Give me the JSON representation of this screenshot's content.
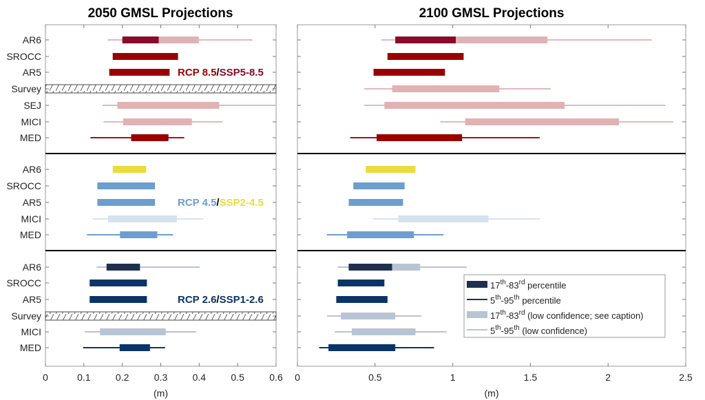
{
  "chart_data": [
    {
      "type": "bar",
      "title": "2050 GMSL Projections",
      "xlabel": "(m)",
      "xlim": [
        0,
        0.6
      ],
      "xticks": [
        "0",
        "0.1",
        "0.2",
        "0.3",
        "0.4",
        "0.5",
        "0.6"
      ],
      "groups": [
        {
          "label_parts": [
            {
              "text": "RCP 8.5",
              "color": "#a10000"
            },
            {
              "text": "/",
              "color": "#000000"
            },
            {
              "text": "SSP5-8.5",
              "color": "#8a0a2a"
            }
          ],
          "rows": [
            {
              "label": "AR6",
              "whisker": [
                0.162,
                0.539
              ],
              "whisker_color": "#e3b8bb",
              "boxes": [
                {
                  "range": [
                    0.2,
                    0.295
                  ],
                  "color": "#8a0a2a"
                },
                {
                  "range": [
                    0.295,
                    0.399
                  ],
                  "color": "#deb3b7"
                }
              ]
            },
            {
              "label": "SROCC",
              "boxes": [
                {
                  "range": [
                    0.175,
                    0.345
                  ],
                  "color": "#9b0000"
                }
              ]
            },
            {
              "label": "AR5",
              "boxes": [
                {
                  "range": [
                    0.166,
                    0.323
                  ],
                  "color": "#9b0000"
                }
              ]
            },
            {
              "label": "Survey",
              "no_data": true
            },
            {
              "label": "SEJ",
              "whisker": [
                0.148,
                0.6
              ],
              "whisker_color": "#e3b8bb",
              "boxes": [
                {
                  "range": [
                    0.187,
                    0.452
                  ],
                  "color": "#e0b2b4"
                }
              ]
            },
            {
              "label": "MICI",
              "whisker": [
                0.151,
                0.461
              ],
              "whisker_color": "#e3b8bb",
              "boxes": [
                {
                  "range": [
                    0.202,
                    0.381
                  ],
                  "color": "#e0b2b4"
                }
              ]
            },
            {
              "label": "MED",
              "whisker": [
                0.117,
                0.361
              ],
              "whisker_color": "#a50f15",
              "boxes": [
                {
                  "range": [
                    0.223,
                    0.32
                  ],
                  "color": "#9b0000"
                }
              ]
            }
          ]
        },
        {
          "label_parts": [
            {
              "text": "RCP 4.5",
              "color": "#6c9ecf"
            },
            {
              "text": "/",
              "color": "#000000"
            },
            {
              "text": "SSP2-4.5",
              "color": "#eadc3a"
            }
          ],
          "rows": [
            {
              "label": "AR6",
              "boxes": [
                {
                  "range": [
                    0.175,
                    0.262
                  ],
                  "color": "#eadc3a"
                }
              ]
            },
            {
              "label": "SROCC",
              "boxes": [
                {
                  "range": [
                    0.135,
                    0.285
                  ],
                  "color": "#6c9ecf"
                }
              ]
            },
            {
              "label": "AR5",
              "boxes": [
                {
                  "range": [
                    0.135,
                    0.285
                  ],
                  "color": "#6c9ecf"
                }
              ]
            },
            {
              "label": "MICI",
              "whisker": [
                0.123,
                0.411
              ],
              "whisker_color": "#d6e3f1",
              "boxes": [
                {
                  "range": [
                    0.163,
                    0.342
                  ],
                  "color": "#d4e2f0"
                }
              ]
            },
            {
              "label": "MED",
              "whisker": [
                0.108,
                0.332
              ],
              "whisker_color": "#6c9ecf",
              "boxes": [
                {
                  "range": [
                    0.194,
                    0.291
                  ],
                  "color": "#6c9ecf"
                }
              ]
            }
          ]
        },
        {
          "label_parts": [
            {
              "text": "RCP 2.6",
              "color": "#0a3468"
            },
            {
              "text": "/",
              "color": "#000000"
            },
            {
              "text": "SSP1-2.6",
              "color": "#0a3468"
            }
          ],
          "rows": [
            {
              "label": "AR6",
              "whisker": [
                0.133,
                0.401
              ],
              "whisker_color": "#b7c4d3",
              "boxes": [
                {
                  "range": [
                    0.159,
                    0.246
                  ],
                  "color": "#1e3050"
                }
              ]
            },
            {
              "label": "SROCC",
              "boxes": [
                {
                  "range": [
                    0.115,
                    0.264
                  ],
                  "color": "#0a3468"
                }
              ]
            },
            {
              "label": "AR5",
              "boxes": [
                {
                  "range": [
                    0.115,
                    0.264
                  ],
                  "color": "#0a3468"
                }
              ]
            },
            {
              "label": "Survey",
              "no_data": true
            },
            {
              "label": "MICI",
              "whisker": [
                0.102,
                0.392
              ],
              "whisker_color": "#b7c4d3",
              "boxes": [
                {
                  "range": [
                    0.142,
                    0.313
                  ],
                  "color": "#b7c4d3"
                }
              ]
            },
            {
              "label": "MED",
              "whisker": [
                0.098,
                0.311
              ],
              "whisker_color": "#0a3468",
              "boxes": [
                {
                  "range": [
                    0.193,
                    0.272
                  ],
                  "color": "#0a3468"
                }
              ]
            }
          ]
        }
      ]
    },
    {
      "type": "bar",
      "title": "2100 GMSL Projections",
      "xlabel": "(m)",
      "xlim": [
        0,
        2.5
      ],
      "xticks": [
        "0",
        "0.5",
        "1",
        "1.5",
        "2",
        "2.5"
      ],
      "groups": [
        {
          "rows": [
            {
              "label": "AR6",
              "whisker": [
                0.54,
                2.28
              ],
              "whisker_color": "#e3b8bb",
              "boxes": [
                {
                  "range": [
                    0.63,
                    1.02
                  ],
                  "color": "#8a0a2a"
                },
                {
                  "range": [
                    1.02,
                    1.61
                  ],
                  "color": "#deb3b7"
                }
              ]
            },
            {
              "label": "SROCC",
              "boxes": [
                {
                  "range": [
                    0.58,
                    1.07
                  ],
                  "color": "#9b0000"
                }
              ]
            },
            {
              "label": "AR5",
              "boxes": [
                {
                  "range": [
                    0.49,
                    0.95
                  ],
                  "color": "#9b0000"
                }
              ]
            },
            {
              "label": "Survey",
              "whisker": [
                0.43,
                1.63
              ],
              "whisker_color": "#e3b8bb",
              "boxes": [
                {
                  "range": [
                    0.61,
                    1.3
                  ],
                  "color": "#e0b2b4"
                }
              ]
            },
            {
              "label": "SEJ",
              "whisker": [
                0.43,
                2.37
              ],
              "whisker_color": "#e3b8bb",
              "boxes": [
                {
                  "range": [
                    0.56,
                    1.72
                  ],
                  "color": "#e0b2b4"
                }
              ]
            },
            {
              "label": "MICI",
              "whisker": [
                0.92,
                2.42
              ],
              "whisker_color": "#e3b8bb",
              "boxes": [
                {
                  "range": [
                    1.08,
                    2.07
                  ],
                  "color": "#e0b2b4"
                }
              ]
            },
            {
              "label": "MED",
              "whisker": [
                0.34,
                1.56
              ],
              "whisker_color": "#a50f15",
              "boxes": [
                {
                  "range": [
                    0.51,
                    1.06
                  ],
                  "color": "#9b0000"
                }
              ]
            }
          ]
        },
        {
          "rows": [
            {
              "label": "AR6",
              "boxes": [
                {
                  "range": [
                    0.44,
                    0.76
                  ],
                  "color": "#eadc3a"
                }
              ]
            },
            {
              "label": "SROCC",
              "boxes": [
                {
                  "range": [
                    0.36,
                    0.69
                  ],
                  "color": "#6c9ecf"
                }
              ]
            },
            {
              "label": "AR5",
              "boxes": [
                {
                  "range": [
                    0.33,
                    0.68
                  ],
                  "color": "#6c9ecf"
                }
              ]
            },
            {
              "label": "MICI",
              "whisker": [
                0.485,
                1.56
              ],
              "whisker_color": "#d6e3f1",
              "boxes": [
                {
                  "range": [
                    0.65,
                    1.23
                  ],
                  "color": "#d4e2f0"
                }
              ]
            },
            {
              "label": "MED",
              "whisker": [
                0.19,
                0.94
              ],
              "whisker_color": "#6c9ecf",
              "boxes": [
                {
                  "range": [
                    0.32,
                    0.75
                  ],
                  "color": "#6c9ecf"
                }
              ]
            }
          ]
        },
        {
          "rows": [
            {
              "label": "AR6",
              "whisker": [
                0.26,
                1.09
              ],
              "whisker_color": "#b7c4d3",
              "boxes": [
                {
                  "range": [
                    0.33,
                    0.61
                  ],
                  "color": "#1e3050"
                },
                {
                  "range": [
                    0.61,
                    0.79
                  ],
                  "color": "#b7c4d3"
                }
              ]
            },
            {
              "label": "SROCC",
              "boxes": [
                {
                  "range": [
                    0.26,
                    0.56
                  ],
                  "color": "#0a3468"
                }
              ]
            },
            {
              "label": "AR5",
              "boxes": [
                {
                  "range": [
                    0.25,
                    0.58
                  ],
                  "color": "#0a3468"
                }
              ]
            },
            {
              "label": "Survey",
              "whisker": [
                0.19,
                0.8
              ],
              "whisker_color": "#b7c4d3",
              "boxes": [
                {
                  "range": [
                    0.28,
                    0.63
                  ],
                  "color": "#b7c4d3"
                }
              ]
            },
            {
              "label": "MICI",
              "whisker": [
                0.24,
                0.96
              ],
              "whisker_color": "#b7c4d3",
              "boxes": [
                {
                  "range": [
                    0.35,
                    0.76
                  ],
                  "color": "#b7c4d3"
                }
              ]
            },
            {
              "label": "MED",
              "whisker": [
                0.14,
                0.88
              ],
              "whisker_color": "#0a3468",
              "boxes": [
                {
                  "range": [
                    0.2,
                    0.63
                  ],
                  "color": "#0a3468"
                }
              ]
            }
          ]
        }
      ],
      "legend": {
        "placement": "bottom-right",
        "entries": [
          {
            "kind": "box",
            "color": "#1e3050",
            "a": "17",
            "a_sup": "th",
            "b": "-83",
            "b_sup": "rd",
            "rest": " percentile"
          },
          {
            "kind": "line",
            "color": "#0a3468",
            "a": "5",
            "a_sup": "th",
            "b": "-95",
            "b_sup": "th",
            "rest": " percentile"
          },
          {
            "kind": "box",
            "color": "#b7c4d3",
            "a": "17",
            "a_sup": "th",
            "b": "-83",
            "b_sup": "rd",
            "rest": " (low confidence; see caption)"
          },
          {
            "kind": "line",
            "color": "#b7c4d3",
            "a": "5",
            "a_sup": "th",
            "b": "-95",
            "b_sup": "th",
            "rest": " (low confidence)"
          }
        ]
      }
    }
  ]
}
